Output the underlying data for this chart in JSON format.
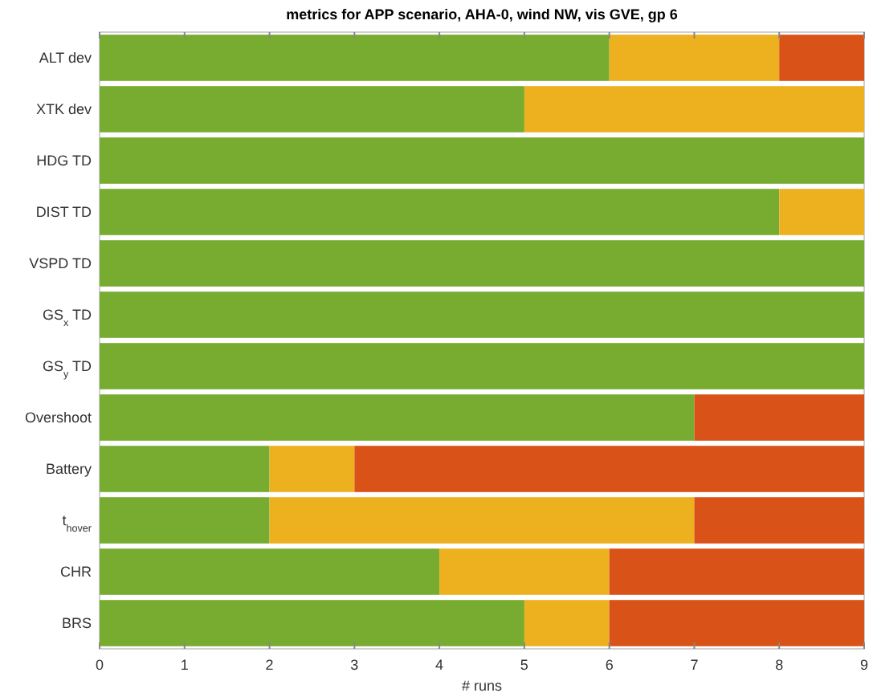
{
  "chart_data": {
    "type": "bar",
    "orientation": "horizontal",
    "stacked": true,
    "title": "metrics for APP scenario, AHA-0, wind NW, vis GVE, gp 6",
    "xlabel": "# runs",
    "categories": [
      "ALT dev",
      "XTK dev",
      "HDG TD",
      "DIST TD",
      "VSPD TD",
      "GS$_{x}$ TD",
      "GS$_{y}$ TD",
      "Overshoot",
      "Battery",
      "t$_{hover}$",
      "CHR",
      "BRS"
    ],
    "series": [
      {
        "color": "#77ac30",
        "values": [
          6,
          5,
          9,
          8,
          9,
          9,
          9,
          7,
          2,
          2,
          4,
          5
        ]
      },
      {
        "color": "#edb120",
        "values": [
          2,
          4,
          0,
          1,
          0,
          0,
          0,
          0,
          1,
          5,
          2,
          1
        ]
      },
      {
        "color": "#d95319",
        "values": [
          1,
          0,
          0,
          0,
          0,
          0,
          0,
          2,
          6,
          2,
          3,
          3
        ]
      }
    ],
    "xlim": [
      0,
      9
    ],
    "xticks": [
      0,
      1,
      2,
      3,
      4,
      5,
      6,
      7,
      8,
      9
    ]
  }
}
